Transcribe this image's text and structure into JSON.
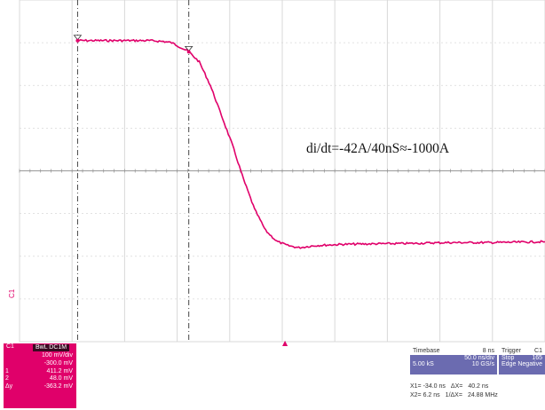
{
  "screen": {
    "bg": "#ffffff",
    "grid_color": "#d8d8d8",
    "axis_color": "#999999",
    "trace_color": "#e0006a",
    "annotation": "di/dt=-42A/40nS≈-1000A",
    "channel_marker": "C1",
    "trigger_marker": "▲"
  },
  "chart_data": {
    "type": "line",
    "series": [
      {
        "values": [
          [
            -34,
            3.05
          ],
          [
            -28,
            3.05
          ],
          [
            -18,
            3.05
          ],
          [
            -8,
            3.05
          ],
          [
            -3,
            3.03
          ],
          [
            0,
            3.0
          ],
          [
            6,
            2.8
          ],
          [
            10,
            2.55
          ],
          [
            14,
            2.0
          ],
          [
            18,
            1.3
          ],
          [
            22,
            0.6
          ],
          [
            26,
            -0.2
          ],
          [
            30,
            -0.9
          ],
          [
            34,
            -1.4
          ],
          [
            38,
            -1.65
          ],
          [
            42,
            -1.75
          ],
          [
            46,
            -1.8
          ],
          [
            52,
            -1.75
          ],
          [
            62,
            -1.72
          ],
          [
            72,
            -1.71
          ],
          [
            86,
            -1.7
          ],
          [
            100,
            -1.68
          ],
          [
            115,
            -1.68
          ],
          [
            135,
            -1.66
          ]
        ]
      }
    ],
    "xlim": [
      -55,
      135
    ],
    "ylim": [
      -4,
      4
    ],
    "grid": true,
    "cursors": [
      {
        "name": "X1",
        "x": -34.0
      },
      {
        "name": "X2",
        "x": 6.2
      }
    ]
  },
  "channel_panel": {
    "name": "C1",
    "tag": "BwL DC1M",
    "rows": [
      {
        "key": "",
        "value": "100 mV/div"
      },
      {
        "key": "",
        "value": "-300.0 mV"
      },
      {
        "key": "1",
        "value": "411.2 mV"
      },
      {
        "key": "2",
        "value": "48.0 mV"
      },
      {
        "key": "Δy",
        "value": "-363.2 mV"
      }
    ]
  },
  "timebase_panel": {
    "title": "Timebase",
    "title_value": "8 ns",
    "lines": [
      [
        "",
        "50.0 ns/div"
      ],
      [
        "5.00 kS",
        "10 GS/s"
      ]
    ]
  },
  "trigger_panel": {
    "title": "Trigger",
    "title_value": "C1",
    "lines": [
      [
        "Stop",
        "165"
      ],
      [
        "Edge",
        "Negative"
      ]
    ]
  },
  "cursor_readout": {
    "line1": {
      "a": "X1= -34.0 ns",
      "b": "ΔX=",
      "c": "40.2 ns"
    },
    "line2": {
      "a": "X2= 6.2 ns",
      "b": "1/ΔX=",
      "c": "24.88 MHz"
    }
  }
}
